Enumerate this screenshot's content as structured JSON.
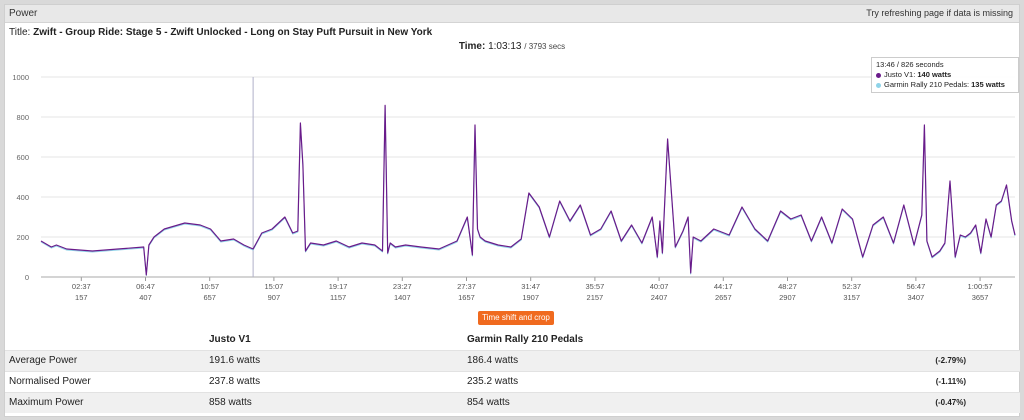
{
  "header": {
    "title": "Power",
    "refresh_hint": "Try refreshing page if data is missing"
  },
  "ride": {
    "title_label": "Title:",
    "title": "Zwift - Group Ride: Stage 5 - Zwift Unlocked - Long on Stay Puft Pursuit in New York",
    "time_label": "Time:",
    "time_value": "1:03:13",
    "time_secs": "/ 3793 secs"
  },
  "tooltip": {
    "time": "13:46",
    "seconds": "/ 826 seconds",
    "series": [
      {
        "name": "Justo V1",
        "value": "140 watts",
        "color": "#6a1b8a"
      },
      {
        "name": "Garmin Rally 210 Pedals",
        "value": "135 watts",
        "color": "#8ed3e8"
      }
    ]
  },
  "crop_button": "Time shift and crop",
  "chart_data": {
    "type": "line",
    "ylim": [
      0,
      1000
    ],
    "y_ticks": [
      "0",
      "200",
      "400",
      "600",
      "800",
      "1000"
    ],
    "x_ticks_time": [
      "02:37",
      "06:47",
      "10:57",
      "15:07",
      "19:17",
      "23:27",
      "27:37",
      "31:47",
      "35:57",
      "40:07",
      "44:17",
      "48:27",
      "52:37",
      "56:47",
      "1:00:57"
    ],
    "x_ticks_secs": [
      "157",
      "407",
      "657",
      "907",
      "1157",
      "1407",
      "1657",
      "1907",
      "2157",
      "2407",
      "2657",
      "2907",
      "3157",
      "3407",
      "3657"
    ],
    "x_tick_secs_values": [
      157,
      407,
      657,
      907,
      1157,
      1407,
      1657,
      1907,
      2157,
      2407,
      2657,
      2907,
      3157,
      3407,
      3657
    ],
    "xlim": [
      0,
      3793
    ],
    "cursor_x": 826,
    "series": [
      {
        "name": "Justo V1",
        "color": "#6a1b8a",
        "x": [
          0,
          40,
          60,
          100,
          200,
          300,
          400,
          410,
          420,
          440,
          480,
          560,
          620,
          660,
          700,
          750,
          790,
          826,
          860,
          900,
          950,
          980,
          1000,
          1010,
          1020,
          1030,
          1050,
          1100,
          1150,
          1200,
          1250,
          1300,
          1330,
          1340,
          1350,
          1360,
          1380,
          1420,
          1480,
          1550,
          1620,
          1660,
          1680,
          1690,
          1700,
          1710,
          1730,
          1780,
          1830,
          1870,
          1900,
          1940,
          1980,
          2020,
          2060,
          2100,
          2140,
          2180,
          2220,
          2260,
          2300,
          2340,
          2380,
          2400,
          2410,
          2420,
          2440,
          2470,
          2500,
          2520,
          2530,
          2540,
          2570,
          2620,
          2680,
          2730,
          2780,
          2830,
          2880,
          2920,
          2960,
          3000,
          3040,
          3080,
          3120,
          3160,
          3200,
          3240,
          3280,
          3320,
          3360,
          3400,
          3430,
          3440,
          3450,
          3470,
          3500,
          3520,
          3540,
          3560,
          3580,
          3600,
          3620,
          3640,
          3660,
          3680,
          3700,
          3720,
          3740,
          3760,
          3780,
          3793
        ],
        "y": [
          180,
          150,
          160,
          140,
          130,
          140,
          150,
          10,
          160,
          200,
          240,
          270,
          260,
          240,
          180,
          190,
          160,
          140,
          220,
          240,
          300,
          220,
          230,
          770,
          560,
          130,
          170,
          160,
          180,
          150,
          170,
          160,
          130,
          858,
          120,
          170,
          150,
          160,
          150,
          140,
          180,
          300,
          110,
          760,
          240,
          200,
          180,
          160,
          150,
          190,
          420,
          350,
          200,
          380,
          280,
          360,
          210,
          240,
          330,
          180,
          260,
          170,
          300,
          100,
          280,
          120,
          690,
          150,
          230,
          300,
          20,
          200,
          180,
          240,
          210,
          350,
          240,
          180,
          330,
          290,
          310,
          180,
          300,
          170,
          340,
          290,
          100,
          260,
          300,
          170,
          360,
          160,
          310,
          760,
          180,
          100,
          130,
          170,
          480,
          100,
          210,
          200,
          220,
          260,
          120,
          290,
          200,
          360,
          380,
          460,
          280,
          210
        ]
      },
      {
        "name": "Garmin Rally 210 Pedals",
        "color": "#8ed3e8",
        "x": [
          0,
          40,
          60,
          100,
          200,
          300,
          400,
          410,
          420,
          440,
          480,
          560,
          620,
          660,
          700,
          750,
          790,
          826,
          860,
          900,
          950,
          980,
          1000,
          1010,
          1020,
          1030,
          1050,
          1100,
          1150,
          1200,
          1250,
          1300,
          1330,
          1340,
          1350,
          1360,
          1380,
          1420,
          1480,
          1550,
          1620,
          1660,
          1680,
          1690,
          1700,
          1710,
          1730,
          1780,
          1830,
          1870,
          1900,
          1940,
          1980,
          2020,
          2060,
          2100,
          2140,
          2180,
          2220,
          2260,
          2300,
          2340,
          2380,
          2400,
          2410,
          2420,
          2440,
          2470,
          2500,
          2520,
          2530,
          2540,
          2570,
          2620,
          2680,
          2730,
          2780,
          2830,
          2880,
          2920,
          2960,
          3000,
          3040,
          3080,
          3120,
          3160,
          3200,
          3240,
          3280,
          3320,
          3360,
          3400,
          3430,
          3440,
          3450,
          3470,
          3500,
          3520,
          3540,
          3560,
          3580,
          3600,
          3620,
          3640,
          3660,
          3680,
          3700,
          3720,
          3740,
          3760,
          3780,
          3793
        ],
        "y": [
          175,
          145,
          155,
          135,
          125,
          135,
          145,
          8,
          155,
          195,
          235,
          265,
          255,
          235,
          175,
          185,
          155,
          135,
          215,
          235,
          295,
          215,
          225,
          760,
          555,
          125,
          165,
          155,
          175,
          145,
          165,
          155,
          125,
          854,
          115,
          165,
          145,
          155,
          145,
          135,
          175,
          295,
          105,
          750,
          235,
          195,
          175,
          155,
          145,
          185,
          415,
          345,
          195,
          375,
          275,
          355,
          205,
          235,
          325,
          175,
          255,
          165,
          295,
          95,
          275,
          115,
          680,
          145,
          225,
          295,
          15,
          195,
          175,
          235,
          205,
          345,
          235,
          175,
          325,
          285,
          305,
          175,
          295,
          165,
          335,
          285,
          95,
          255,
          295,
          165,
          355,
          155,
          305,
          750,
          175,
          95,
          125,
          165,
          475,
          95,
          205,
          195,
          215,
          255,
          115,
          285,
          195,
          355,
          375,
          455,
          275,
          205
        ]
      }
    ]
  },
  "stats": {
    "columns": [
      "",
      "Justo V1",
      "Garmin Rally 210 Pedals",
      ""
    ],
    "rows": [
      {
        "label": "Average Power",
        "a": "191.6 watts",
        "b": "186.4 watts",
        "diff": "(-2.79%)"
      },
      {
        "label": "Normalised Power",
        "a": "237.8 watts",
        "b": "235.2 watts",
        "diff": "(-1.11%)"
      },
      {
        "label": "Maximum Power",
        "a": "858 watts",
        "b": "854 watts",
        "diff": "(-0.47%)"
      }
    ]
  }
}
